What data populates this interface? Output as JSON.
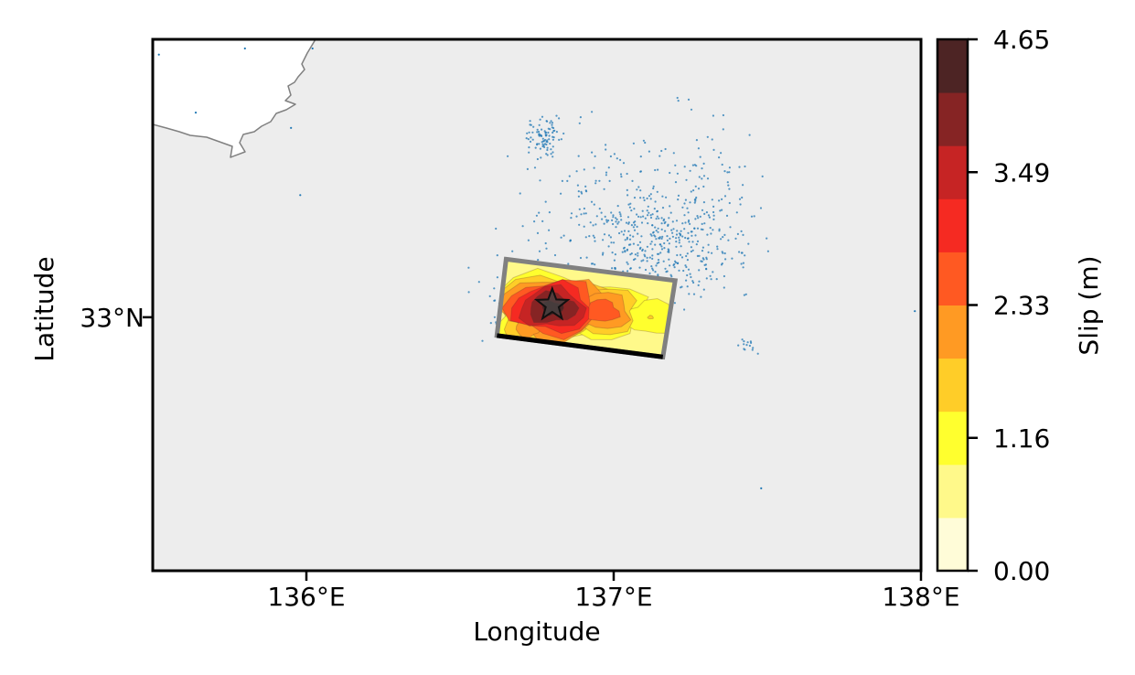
{
  "map": {
    "extent": {
      "lon": [
        135.5,
        138.0
      ],
      "lat": [
        32.17,
        33.91
      ]
    },
    "x_ticks": [
      {
        "value": 136.0,
        "label": "136°E"
      },
      {
        "value": 137.0,
        "label": "137°E"
      },
      {
        "value": 138.0,
        "label": "138°E"
      }
    ],
    "y_ticks": [
      {
        "value": 33.0,
        "label": "33°N"
      }
    ],
    "xlabel": "Longitude",
    "ylabel": "Latitude",
    "colors": {
      "ocean": "#ededed",
      "land": "#ffffff",
      "coastline": "#808080",
      "aftershock": "#1f77b4",
      "fault_outline": "#808080",
      "fault_top_edge": "#000000",
      "epicenter_star": "#444444"
    },
    "fault_plane": {
      "corners": [
        {
          "lon": 136.65,
          "lat": 33.19
        },
        {
          "lon": 137.2,
          "lat": 33.12
        },
        {
          "lon": 137.16,
          "lat": 32.87
        },
        {
          "lon": 136.62,
          "lat": 32.94
        }
      ],
      "top_edge": [
        {
          "lon": 136.62,
          "lat": 32.94
        },
        {
          "lon": 137.16,
          "lat": 32.87
        }
      ]
    },
    "epicenter": {
      "lon": 136.8,
      "lat": 33.04
    },
    "slip_patches": [
      {
        "lon": 136.8,
        "lat": 33.03,
        "slip": 4.3,
        "spread": 0.17
      },
      {
        "lon": 136.96,
        "lat": 33.02,
        "slip": 2.6,
        "spread": 0.14
      },
      {
        "lon": 137.12,
        "lat": 33.0,
        "slip": 1.4,
        "spread": 0.12
      },
      {
        "lon": 136.72,
        "lat": 32.96,
        "slip": 2.0,
        "spread": 0.12
      }
    ]
  },
  "colorbar": {
    "label": "Slip (m)",
    "ticks": [
      "0.00",
      "1.16",
      "2.33",
      "3.49",
      "4.65"
    ],
    "min": 0.0,
    "max": 4.65,
    "levels": [
      "#fffcd8",
      "#fff98a",
      "#ffff2e",
      "#ffcd28",
      "#ff9a23",
      "#ff5922",
      "#f52a22",
      "#c62424",
      "#862424",
      "#4d2424"
    ]
  }
}
